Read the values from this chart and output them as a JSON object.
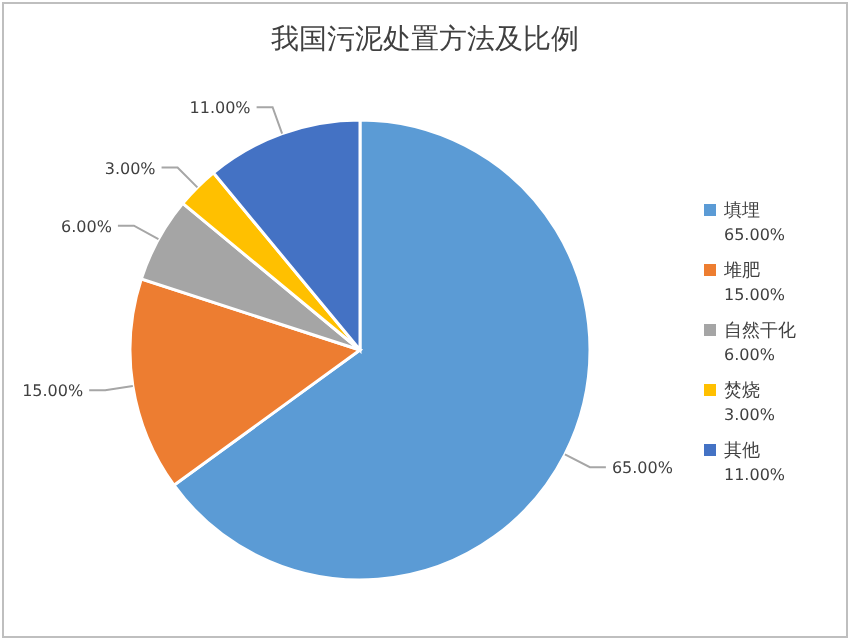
{
  "chart_data": {
    "type": "pie",
    "title": "我国污泥处置方法及比例",
    "categories": [
      "填埋",
      "堆肥",
      "自然干化",
      "焚烧",
      "其他"
    ],
    "values": [
      65,
      15,
      6,
      3,
      11
    ],
    "value_labels": [
      "65.00%",
      "15.00%",
      "6.00%",
      "3.00%",
      "11.00%"
    ],
    "colors": [
      "#5b9bd5",
      "#ed7d31",
      "#a5a5a5",
      "#ffc000",
      "#4472c4"
    ],
    "legend": "right"
  }
}
